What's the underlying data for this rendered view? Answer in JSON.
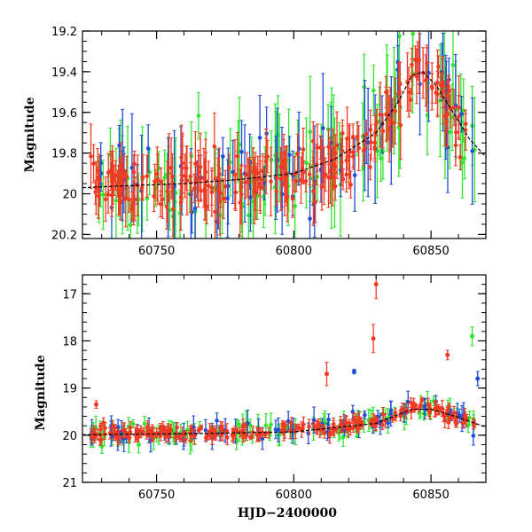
{
  "chart_data": [
    {
      "type": "scatter",
      "panel": "top",
      "xlabel": "",
      "ylabel": "Magnitude",
      "xlim": [
        60723,
        60870
      ],
      "ylim": [
        19.2,
        20.22
      ],
      "y_inverted": true,
      "xticks": [
        60750,
        60800,
        60850
      ],
      "xtick_labels": [
        "60750",
        "60800",
        "60850"
      ],
      "yticks": [
        19.2,
        19.4,
        19.6,
        19.8,
        20.0,
        20.2
      ],
      "ytick_labels": [
        "19.2",
        "19.4",
        "19.6",
        "19.8",
        "20",
        "20.2"
      ],
      "series_colors": {
        "green": "#2ee62e",
        "blue": "#1f4fd8",
        "red": "#f03a24"
      },
      "model_curve": {
        "x": [
          60723,
          60740,
          60760,
          60780,
          60800,
          60815,
          60830,
          60838,
          60843,
          60847,
          60852,
          60858,
          60864,
          60870
        ],
        "y": [
          19.97,
          19.96,
          19.95,
          19.93,
          19.9,
          19.83,
          19.7,
          19.55,
          19.42,
          19.4,
          19.47,
          19.6,
          19.73,
          19.82
        ]
      }
    },
    {
      "type": "scatter",
      "panel": "bottom",
      "xlabel": "HJD−2400000",
      "ylabel": "Magnitude",
      "xlim": [
        60723,
        60870
      ],
      "ylim": [
        16.6,
        21.0
      ],
      "y_inverted": true,
      "xticks": [
        60750,
        60800,
        60850
      ],
      "xtick_labels": [
        "60750",
        "60800",
        "60850"
      ],
      "yticks": [
        17,
        18,
        19,
        20,
        21
      ],
      "ytick_labels": [
        "17",
        "18",
        "19",
        "20",
        "21"
      ],
      "series_colors": {
        "green": "#2ee62e",
        "blue": "#1f4fd8",
        "red": "#f03a24"
      },
      "outliers": [
        {
          "color": "red",
          "x": 60830,
          "y": 16.8,
          "err": 0.3
        },
        {
          "color": "red",
          "x": 60829,
          "y": 17.95,
          "err": 0.3
        },
        {
          "color": "red",
          "x": 60812,
          "y": 18.7,
          "err": 0.25
        },
        {
          "color": "red",
          "x": 60856,
          "y": 18.3,
          "err": 0.1
        },
        {
          "color": "green",
          "x": 60865,
          "y": 17.9,
          "err": 0.2
        },
        {
          "color": "blue",
          "x": 60822,
          "y": 18.65,
          "err": 0.05
        },
        {
          "color": "blue",
          "x": 60867,
          "y": 18.8,
          "err": 0.15
        },
        {
          "color": "red",
          "x": 60728,
          "y": 19.35,
          "err": 0.08
        }
      ],
      "model_curve": {
        "x": [
          60723,
          60760,
          60800,
          60830,
          60843,
          60850,
          60860,
          60870
        ],
        "y": [
          19.99,
          19.97,
          19.93,
          19.75,
          19.45,
          19.45,
          19.62,
          19.83
        ]
      }
    }
  ]
}
